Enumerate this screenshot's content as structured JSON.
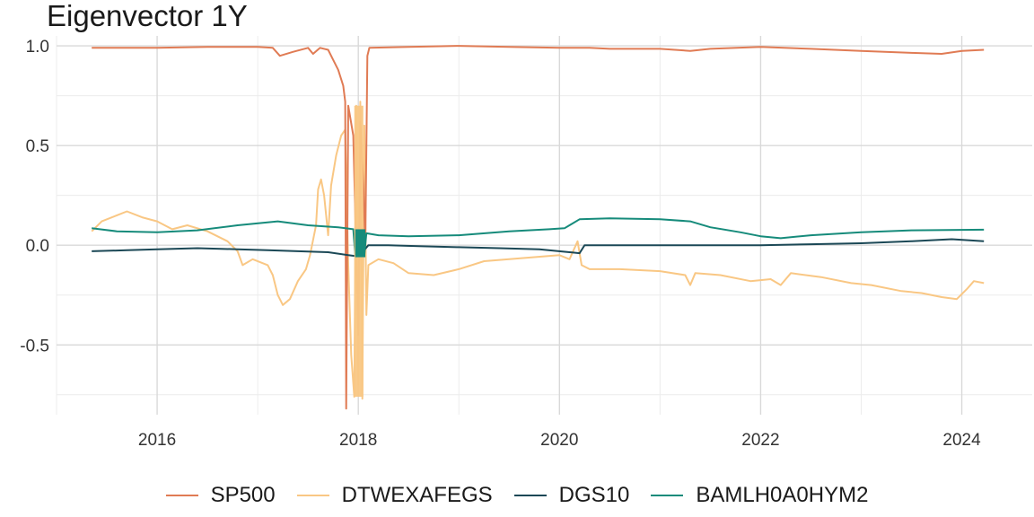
{
  "chart_data": {
    "type": "line",
    "title": "Eigenvector 1Y",
    "xlabel": "",
    "ylabel": "",
    "xlim": [
      2015.0,
      2024.7
    ],
    "ylim": [
      -0.85,
      1.05
    ],
    "x_ticks": [
      2016,
      2018,
      2020,
      2022,
      2024
    ],
    "x_tick_labels": [
      "2016",
      "2018",
      "2020",
      "2022",
      "2024"
    ],
    "y_ticks": [
      1.0,
      0.5,
      0.0,
      -0.5
    ],
    "y_tick_labels": [
      "1.0",
      "0.5",
      "0.0",
      "-0.5"
    ],
    "grid": true,
    "legend_position": "bottom",
    "series": [
      {
        "name": "SP500",
        "color": "#e07b54",
        "points": [
          [
            2015.35,
            0.99
          ],
          [
            2016.0,
            0.99
          ],
          [
            2016.5,
            0.995
          ],
          [
            2017.0,
            0.995
          ],
          [
            2017.15,
            0.99
          ],
          [
            2017.22,
            0.95
          ],
          [
            2017.35,
            0.97
          ],
          [
            2017.5,
            0.99
          ],
          [
            2017.55,
            0.96
          ],
          [
            2017.62,
            0.99
          ],
          [
            2017.7,
            0.98
          ],
          [
            2017.75,
            0.93
          ],
          [
            2017.8,
            0.88
          ],
          [
            2017.85,
            0.8
          ],
          [
            2017.87,
            0.72
          ],
          [
            2017.88,
            -0.82
          ],
          [
            2017.9,
            0.7
          ],
          [
            2017.95,
            0.55
          ],
          [
            2018.0,
            -0.45
          ],
          [
            2018.02,
            0.62
          ],
          [
            2018.05,
            0.3
          ],
          [
            2018.07,
            0.0
          ],
          [
            2018.09,
            0.95
          ],
          [
            2018.11,
            0.99
          ],
          [
            2018.5,
            0.995
          ],
          [
            2019.0,
            1.0
          ],
          [
            2019.5,
            0.995
          ],
          [
            2020.0,
            0.99
          ],
          [
            2020.3,
            0.99
          ],
          [
            2020.5,
            0.985
          ],
          [
            2021.0,
            0.985
          ],
          [
            2021.3,
            0.975
          ],
          [
            2021.5,
            0.985
          ],
          [
            2022.0,
            0.995
          ],
          [
            2022.5,
            0.985
          ],
          [
            2023.0,
            0.975
          ],
          [
            2023.5,
            0.965
          ],
          [
            2023.8,
            0.96
          ],
          [
            2024.0,
            0.975
          ],
          [
            2024.22,
            0.98
          ]
        ]
      },
      {
        "name": "DTWEXAFEGS",
        "color": "#f9c784",
        "points": [
          [
            2015.35,
            0.07
          ],
          [
            2015.45,
            0.12
          ],
          [
            2015.6,
            0.15
          ],
          [
            2015.7,
            0.17
          ],
          [
            2015.85,
            0.14
          ],
          [
            2016.0,
            0.12
          ],
          [
            2016.15,
            0.08
          ],
          [
            2016.3,
            0.1
          ],
          [
            2016.5,
            0.07
          ],
          [
            2016.7,
            0.02
          ],
          [
            2016.8,
            -0.03
          ],
          [
            2016.85,
            -0.1
          ],
          [
            2016.95,
            -0.07
          ],
          [
            2017.1,
            -0.1
          ],
          [
            2017.15,
            -0.15
          ],
          [
            2017.2,
            -0.25
          ],
          [
            2017.25,
            -0.3
          ],
          [
            2017.32,
            -0.27
          ],
          [
            2017.4,
            -0.18
          ],
          [
            2017.48,
            -0.12
          ],
          [
            2017.52,
            -0.05
          ],
          [
            2017.58,
            0.1
          ],
          [
            2017.6,
            0.28
          ],
          [
            2017.63,
            0.33
          ],
          [
            2017.66,
            0.25
          ],
          [
            2017.7,
            0.05
          ],
          [
            2017.73,
            0.3
          ],
          [
            2017.78,
            0.45
          ],
          [
            2017.83,
            0.55
          ],
          [
            2017.87,
            0.58
          ],
          [
            2017.9,
            -0.1
          ],
          [
            2017.93,
            -0.55
          ],
          [
            2017.96,
            -0.76
          ],
          [
            2017.98,
            0.7
          ],
          [
            2018.0,
            -0.7
          ],
          [
            2018.02,
            0.72
          ],
          [
            2018.04,
            -0.77
          ],
          [
            2018.06,
            0.6
          ],
          [
            2018.08,
            -0.35
          ],
          [
            2018.1,
            -0.1
          ],
          [
            2018.2,
            -0.07
          ],
          [
            2018.35,
            -0.09
          ],
          [
            2018.5,
            -0.14
          ],
          [
            2018.75,
            -0.15
          ],
          [
            2019.0,
            -0.12
          ],
          [
            2019.25,
            -0.08
          ],
          [
            2019.5,
            -0.07
          ],
          [
            2019.75,
            -0.06
          ],
          [
            2020.0,
            -0.05
          ],
          [
            2020.1,
            -0.07
          ],
          [
            2020.18,
            0.02
          ],
          [
            2020.22,
            -0.1
          ],
          [
            2020.3,
            -0.12
          ],
          [
            2020.6,
            -0.12
          ],
          [
            2021.0,
            -0.13
          ],
          [
            2021.25,
            -0.15
          ],
          [
            2021.3,
            -0.2
          ],
          [
            2021.35,
            -0.14
          ],
          [
            2021.6,
            -0.15
          ],
          [
            2021.9,
            -0.18
          ],
          [
            2022.1,
            -0.17
          ],
          [
            2022.2,
            -0.2
          ],
          [
            2022.3,
            -0.14
          ],
          [
            2022.6,
            -0.16
          ],
          [
            2022.9,
            -0.19
          ],
          [
            2023.1,
            -0.2
          ],
          [
            2023.4,
            -0.23
          ],
          [
            2023.6,
            -0.24
          ],
          [
            2023.8,
            -0.26
          ],
          [
            2023.95,
            -0.27
          ],
          [
            2024.05,
            -0.22
          ],
          [
            2024.12,
            -0.18
          ],
          [
            2024.22,
            -0.19
          ]
        ]
      },
      {
        "name": "DGS10",
        "color": "#1b4856",
        "points": [
          [
            2015.35,
            -0.03
          ],
          [
            2015.7,
            -0.025
          ],
          [
            2016.0,
            -0.02
          ],
          [
            2016.4,
            -0.015
          ],
          [
            2016.8,
            -0.02
          ],
          [
            2017.1,
            -0.025
          ],
          [
            2017.4,
            -0.03
          ],
          [
            2017.7,
            -0.035
          ],
          [
            2017.9,
            -0.05
          ],
          [
            2017.98,
            -0.055
          ],
          [
            2018.05,
            -0.03
          ],
          [
            2018.1,
            0.0
          ],
          [
            2018.3,
            0.0
          ],
          [
            2018.6,
            -0.005
          ],
          [
            2019.0,
            -0.01
          ],
          [
            2019.4,
            -0.015
          ],
          [
            2019.8,
            -0.02
          ],
          [
            2020.1,
            -0.035
          ],
          [
            2020.2,
            -0.04
          ],
          [
            2020.25,
            0.0
          ],
          [
            2020.5,
            0.0
          ],
          [
            2021.0,
            0.0
          ],
          [
            2021.5,
            0.0
          ],
          [
            2022.0,
            0.0
          ],
          [
            2022.5,
            0.005
          ],
          [
            2023.0,
            0.01
          ],
          [
            2023.5,
            0.02
          ],
          [
            2023.9,
            0.03
          ],
          [
            2024.22,
            0.02
          ]
        ]
      },
      {
        "name": "BAMLH0A0HYM2",
        "color": "#168b7b",
        "points": [
          [
            2015.35,
            0.085
          ],
          [
            2015.6,
            0.07
          ],
          [
            2016.0,
            0.065
          ],
          [
            2016.4,
            0.075
          ],
          [
            2016.8,
            0.1
          ],
          [
            2017.2,
            0.12
          ],
          [
            2017.5,
            0.1
          ],
          [
            2017.8,
            0.09
          ],
          [
            2017.95,
            0.08
          ],
          [
            2017.97,
            -0.05
          ],
          [
            2018.0,
            0.08
          ],
          [
            2018.02,
            -0.05
          ],
          [
            2018.04,
            0.08
          ],
          [
            2018.06,
            -0.05
          ],
          [
            2018.08,
            0.06
          ],
          [
            2018.2,
            0.05
          ],
          [
            2018.5,
            0.045
          ],
          [
            2019.0,
            0.05
          ],
          [
            2019.5,
            0.07
          ],
          [
            2019.9,
            0.08
          ],
          [
            2020.05,
            0.085
          ],
          [
            2020.2,
            0.13
          ],
          [
            2020.5,
            0.135
          ],
          [
            2021.0,
            0.13
          ],
          [
            2021.3,
            0.12
          ],
          [
            2021.5,
            0.09
          ],
          [
            2021.8,
            0.065
          ],
          [
            2022.0,
            0.045
          ],
          [
            2022.2,
            0.035
          ],
          [
            2022.5,
            0.05
          ],
          [
            2023.0,
            0.065
          ],
          [
            2023.5,
            0.075
          ],
          [
            2024.22,
            0.078
          ]
        ]
      }
    ]
  }
}
